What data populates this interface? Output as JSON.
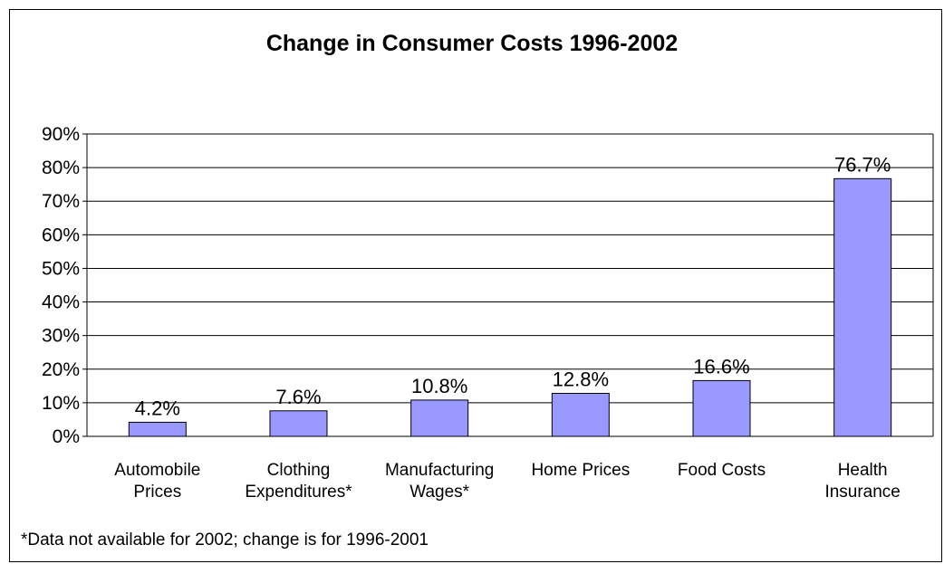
{
  "chart_data": {
    "type": "bar",
    "title": "Change in Consumer Costs 1996-2002",
    "categories": [
      [
        "Automobile",
        "Prices"
      ],
      [
        "Clothing",
        "Expenditures*"
      ],
      [
        "Manufacturing",
        "Wages*"
      ],
      [
        "Home Prices"
      ],
      [
        "Food Costs"
      ],
      [
        "Health",
        "Insurance"
      ]
    ],
    "values": [
      4.2,
      7.6,
      10.8,
      12.8,
      16.6,
      76.7
    ],
    "data_labels": [
      "4.2%",
      "7.6%",
      "10.8%",
      "12.8%",
      "16.6%",
      "76.7%"
    ],
    "ylim": [
      0,
      90
    ],
    "yticks": [
      "0%",
      "10%",
      "20%",
      "30%",
      "40%",
      "50%",
      "60%",
      "70%",
      "80%",
      "90%"
    ],
    "grid": true,
    "bar_color": "#9999ff",
    "footnote": "*Data not available for 2002; change is for 1996-2001"
  }
}
